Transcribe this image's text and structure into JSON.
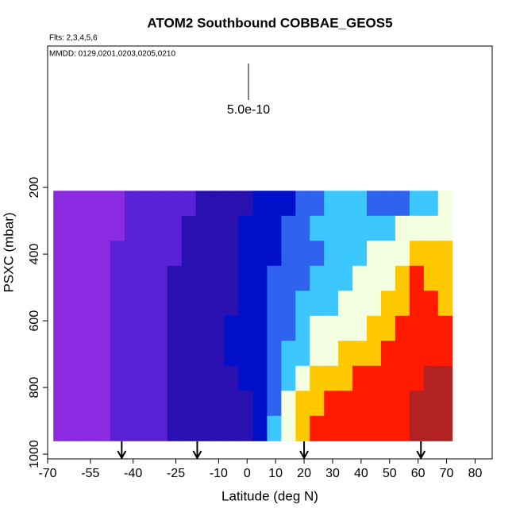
{
  "chart_data": {
    "type": "heatmap",
    "title": "ATOM2 Southbound COBBAE_GEOS5",
    "subtitle": "Flts: 2,3,4,5,6",
    "annotation": "MMDD: 0129,0201,0203,0205,0210",
    "scale_label": "5.0e-10",
    "x_label": "Latitude (deg N)",
    "y_label": "PSXC (mbar)",
    "xlim": [
      -70,
      86
    ],
    "ylim": [
      1014,
      -224
    ],
    "xticks": [
      -70,
      -55,
      -40,
      -25,
      -10,
      0,
      10,
      20,
      30,
      40,
      50,
      60,
      70,
      80
    ],
    "yticks": [
      200,
      400,
      600,
      800,
      1000
    ],
    "x_edges": [
      -68,
      -63,
      -58,
      -53,
      -48,
      -43,
      -38,
      -33,
      -28,
      -23,
      -18,
      -13,
      -8,
      -3,
      2,
      7,
      12,
      17,
      22,
      27,
      32,
      37,
      42,
      47,
      52,
      57,
      62,
      67,
      72
    ],
    "y_edges": [
      210,
      285,
      360,
      435,
      510,
      585,
      660,
      735,
      810,
      885,
      960
    ],
    "colors": [
      "#8a2be2",
      "#5a22d6",
      "#2a10b0",
      "#0010c8",
      "#2f62ee",
      "#3cc8ff",
      "#f4ffe0",
      "#ffc800",
      "#ff1a00",
      "#b22222"
    ],
    "z": [
      [
        0,
        0,
        0,
        0,
        0,
        1,
        1,
        1,
        1,
        1,
        2,
        2,
        2,
        2,
        3,
        3,
        3,
        4,
        4,
        5,
        5,
        5,
        4,
        4,
        4,
        5,
        5,
        6
      ],
      [
        0,
        0,
        0,
        0,
        0,
        1,
        1,
        1,
        1,
        2,
        2,
        2,
        2,
        3,
        3,
        3,
        4,
        4,
        5,
        5,
        5,
        5,
        5,
        5,
        6,
        6,
        6,
        6
      ],
      [
        0,
        0,
        0,
        0,
        1,
        1,
        1,
        1,
        1,
        2,
        2,
        2,
        2,
        3,
        3,
        3,
        4,
        4,
        4,
        5,
        5,
        5,
        6,
        6,
        6,
        7,
        7,
        7
      ],
      [
        0,
        0,
        0,
        0,
        1,
        1,
        1,
        1,
        2,
        2,
        2,
        2,
        2,
        3,
        3,
        4,
        4,
        4,
        5,
        5,
        5,
        6,
        6,
        6,
        7,
        8,
        7,
        7
      ],
      [
        0,
        0,
        0,
        0,
        1,
        1,
        1,
        1,
        2,
        2,
        2,
        2,
        2,
        3,
        3,
        4,
        4,
        5,
        5,
        5,
        6,
        6,
        6,
        7,
        7,
        8,
        8,
        7
      ],
      [
        0,
        0,
        0,
        0,
        1,
        1,
        1,
        1,
        2,
        2,
        2,
        2,
        3,
        3,
        3,
        4,
        4,
        5,
        6,
        6,
        6,
        6,
        7,
        7,
        8,
        8,
        8,
        8
      ],
      [
        0,
        0,
        0,
        0,
        1,
        1,
        1,
        1,
        2,
        2,
        2,
        2,
        3,
        3,
        3,
        4,
        5,
        5,
        6,
        6,
        7,
        7,
        7,
        8,
        8,
        8,
        8,
        8
      ],
      [
        0,
        0,
        0,
        0,
        1,
        1,
        1,
        1,
        2,
        2,
        2,
        2,
        2,
        3,
        3,
        4,
        5,
        6,
        7,
        7,
        7,
        8,
        8,
        8,
        8,
        8,
        9,
        9
      ],
      [
        0,
        0,
        0,
        0,
        1,
        1,
        1,
        1,
        2,
        2,
        2,
        2,
        2,
        2,
        3,
        4,
        6,
        7,
        7,
        8,
        8,
        8,
        8,
        8,
        8,
        9,
        9,
        9
      ],
      [
        0,
        0,
        0,
        0,
        1,
        1,
        1,
        1,
        2,
        2,
        2,
        2,
        2,
        2,
        3,
        5,
        6,
        7,
        8,
        8,
        8,
        8,
        8,
        8,
        8,
        9,
        9,
        9
      ]
    ],
    "arrows": [
      -44,
      -17.5,
      20,
      61
    ]
  }
}
